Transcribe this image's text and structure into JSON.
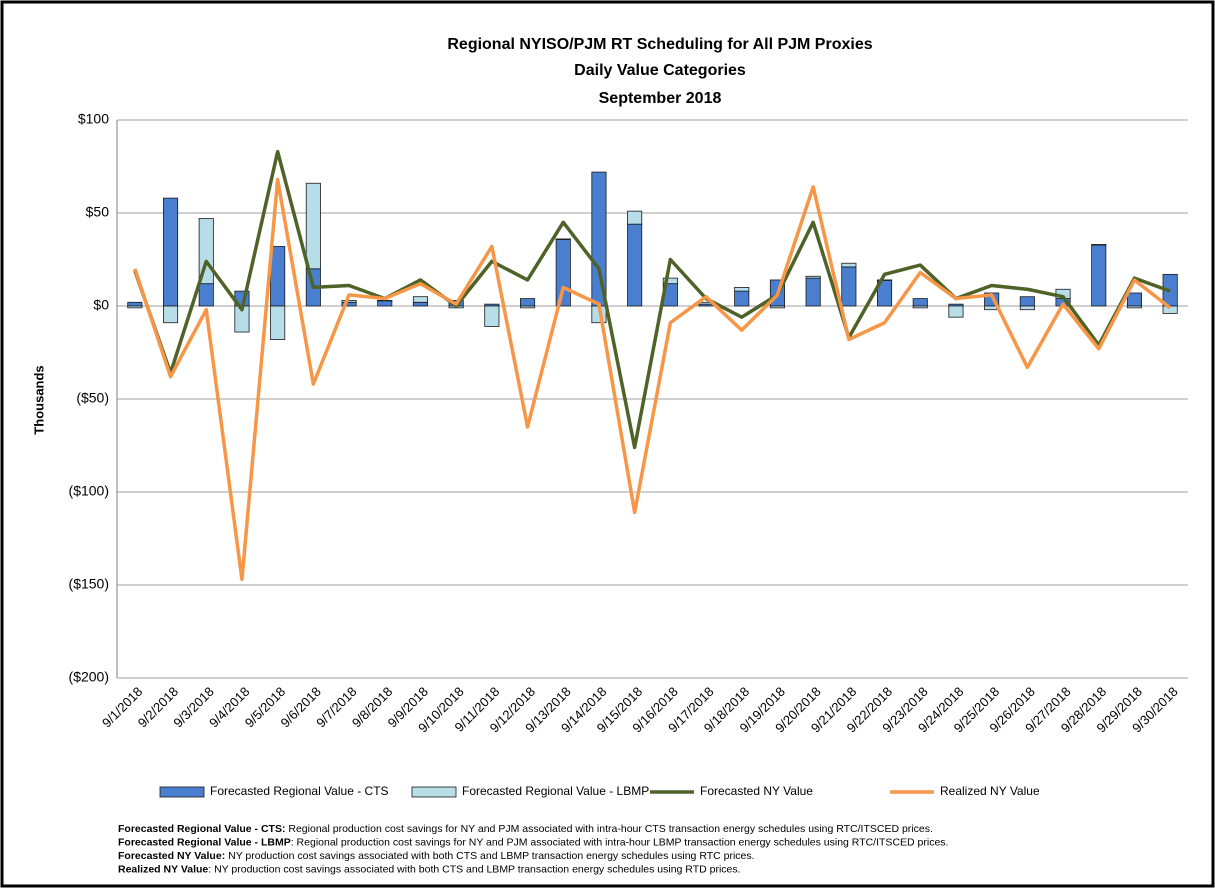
{
  "chart_data": {
    "type": "bar-line",
    "title": "Regional NYISO/PJM RT Scheduling for All PJM Proxies",
    "subtitle": "Daily Value Categories",
    "period": "September 2018",
    "y_label": "Thousands",
    "categories": [
      "9/1/2018",
      "9/2/2018",
      "9/3/2018",
      "9/4/2018",
      "9/5/2018",
      "9/6/2018",
      "9/7/2018",
      "9/8/2018",
      "9/9/2018",
      "9/10/2018",
      "9/11/2018",
      "9/12/2018",
      "9/13/2018",
      "9/14/2018",
      "9/15/2018",
      "9/16/2018",
      "9/17/2018",
      "9/18/2018",
      "9/19/2018",
      "9/20/2018",
      "9/21/2018",
      "9/22/2018",
      "9/23/2018",
      "9/24/2018",
      "9/25/2018",
      "9/26/2018",
      "9/27/2018",
      "9/28/2018",
      "9/29/2018",
      "9/30/2018"
    ],
    "series": [
      {
        "name": "Forecasted Regional Value - CTS",
        "kind": "bar",
        "color": "#4a7fd0",
        "values": [
          2,
          58,
          12,
          8,
          32,
          20,
          2,
          3,
          2,
          3,
          1,
          4,
          36,
          72,
          44,
          12,
          1,
          8,
          14,
          15,
          21,
          14,
          4,
          1,
          7,
          5,
          4,
          33,
          7,
          17
        ]
      },
      {
        "name": "Forecasted Regional Value - LBMP",
        "kind": "bar",
        "color": "#b7dde8",
        "values": [
          -1,
          -9,
          35,
          -14,
          -18,
          46,
          1,
          0,
          3,
          -1,
          -11,
          -1,
          0,
          -9,
          7,
          3,
          1,
          2,
          -1,
          1,
          2,
          0,
          -1,
          -6,
          -2,
          -2,
          5,
          0,
          -1,
          -4
        ]
      },
      {
        "name": "Forecasted NY Value",
        "kind": "line",
        "color": "#4f6228",
        "values": [
          19,
          -36,
          24,
          -2,
          83,
          10,
          11,
          4,
          14,
          0,
          24,
          14,
          45,
          20,
          -76,
          25,
          4,
          -6,
          6,
          45,
          -17,
          17,
          22,
          4,
          11,
          9,
          5,
          -21,
          15,
          8
        ]
      },
      {
        "name": "Realized NY Value",
        "kind": "line",
        "color": "#f79646",
        "values": [
          20,
          -38,
          -2,
          -147,
          68,
          -42,
          6,
          4,
          12,
          1,
          32,
          -65,
          10,
          1,
          -111,
          -9,
          5,
          -13,
          6,
          64,
          -18,
          -9,
          18,
          4,
          6,
          -33,
          1,
          -23,
          14,
          -1
        ]
      }
    ],
    "ylim": [
      -200,
      100
    ],
    "yticks": [
      {
        "value": -200,
        "label": "($200)"
      },
      {
        "value": -150,
        "label": "($150)"
      },
      {
        "value": -100,
        "label": "($100)"
      },
      {
        "value": -50,
        "label": "($50)"
      },
      {
        "value": 0,
        "label": "$0"
      },
      {
        "value": 50,
        "label": "$50"
      },
      {
        "value": 100,
        "label": "$100"
      }
    ],
    "negative_tick_color": "#ff0000",
    "grid": true,
    "legend": "bottom",
    "notes": [
      {
        "term": "Forecasted Regional Value - CTS:",
        "text": " Regional production cost savings for NY and PJM associated with intra-hour CTS transaction energy schedules using RTC/ITSCED prices."
      },
      {
        "term": "Forecasted Regional Value - LBMP",
        "text": ": Regional production cost savings for NY and PJM associated with intra-hour LBMP transaction energy schedules using RTC/ITSCED prices."
      },
      {
        "term": "Forecasted NY Value:",
        "text": " NY production cost savings associated with both CTS and LBMP transaction energy schedules using RTC prices."
      },
      {
        "term": "Realized NY Value",
        "text": ": NY production cost savings associated with both CTS and LBMP transaction energy schedules using RTD prices."
      }
    ]
  }
}
